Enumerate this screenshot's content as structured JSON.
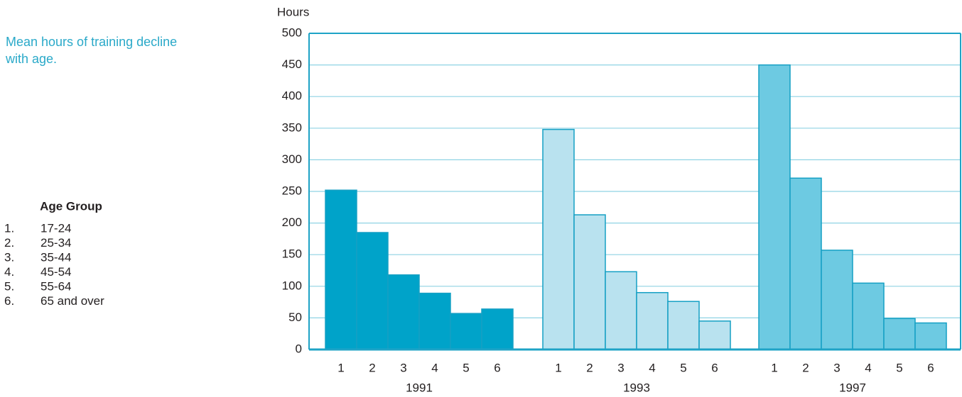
{
  "chart_data": {
    "type": "bar",
    "annotation": "Mean hours of training decline with age.",
    "ylabel": "Hours",
    "legend_title": "Age Group",
    "legend_items": [
      {
        "number": "1.",
        "label": "17-24"
      },
      {
        "number": "2.",
        "label": "25-34"
      },
      {
        "number": "3.",
        "label": "35-44"
      },
      {
        "number": "4.",
        "label": "45-54"
      },
      {
        "number": "5.",
        "label": "55-64"
      },
      {
        "number": "6.",
        "label": "65 and over"
      }
    ],
    "categories": [
      "1",
      "2",
      "3",
      "4",
      "5",
      "6"
    ],
    "series": [
      {
        "name": "1991",
        "color": "#00a3c9",
        "values": [
          252,
          185,
          118,
          89,
          57,
          64
        ]
      },
      {
        "name": "1993",
        "color": "#b9e2ef",
        "values": [
          348,
          213,
          123,
          90,
          76,
          45
        ]
      },
      {
        "name": "1997",
        "color": "#6dcae2",
        "values": [
          450,
          271,
          157,
          105,
          49,
          42
        ]
      }
    ],
    "ylim": [
      0,
      500
    ],
    "yticks": [
      0,
      50,
      100,
      150,
      200,
      250,
      300,
      350,
      400,
      450,
      500
    ],
    "grid": true
  }
}
